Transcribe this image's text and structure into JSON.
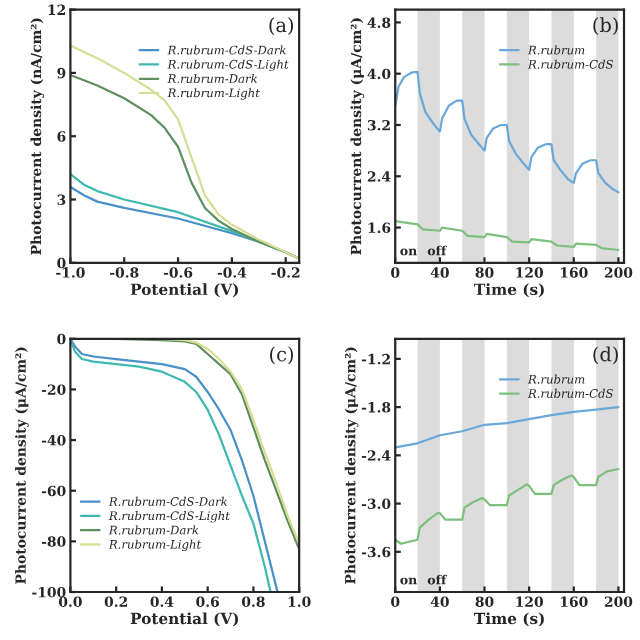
{
  "chart_data": [
    {
      "type": "line",
      "xlabel": "Potential (V)",
      "ylabel": "Photocurrent density (nA/cm²)",
      "xlim": [
        -1.0,
        -0.15
      ],
      "ylim": [
        0,
        12
      ],
      "xticks": [
        {
          "value": -1,
          "label": "-1.0"
        },
        -0.8,
        -0.6,
        -0.4,
        -0.2
      ],
      "yticks": [
        0,
        3,
        6,
        9,
        12
      ],
      "legend": "top right",
      "annotations": [
        "(a)"
      ],
      "series": [
        {
          "name": "R.rubrum-CdS-Dark",
          "color": "#4a90c8",
          "x": [
            -1.0,
            -0.95,
            -0.9,
            -0.8,
            -0.6,
            -0.4,
            -0.3,
            -0.2,
            -0.15
          ],
          "values": [
            3.6,
            3.2,
            2.9,
            2.6,
            2.1,
            1.4,
            1.0,
            0.5,
            0.2
          ]
        },
        {
          "name": "R.rubrum-CdS-Light",
          "color": "#3fb8b0",
          "x": [
            -1.0,
            -0.95,
            -0.9,
            -0.8,
            -0.6,
            -0.4,
            -0.3,
            -0.2,
            -0.15
          ],
          "values": [
            4.2,
            3.7,
            3.4,
            3.0,
            2.4,
            1.5,
            1.0,
            0.5,
            0.2
          ]
        },
        {
          "name": "R.rubrum-Dark",
          "color": "#5e8f5e",
          "x": [
            -1.0,
            -0.9,
            -0.8,
            -0.7,
            -0.65,
            -0.6,
            -0.55,
            -0.5,
            -0.45,
            -0.4,
            -0.3,
            -0.2,
            -0.15
          ],
          "values": [
            8.9,
            8.4,
            7.8,
            7.0,
            6.4,
            5.5,
            3.8,
            2.6,
            2.0,
            1.6,
            1.0,
            0.5,
            0.2
          ]
        },
        {
          "name": "R.rubrum-Light",
          "color": "#d4de94",
          "x": [
            -1.0,
            -0.9,
            -0.8,
            -0.7,
            -0.65,
            -0.6,
            -0.55,
            -0.5,
            -0.45,
            -0.4,
            -0.3,
            -0.2,
            -0.15
          ],
          "values": [
            10.3,
            9.7,
            9.0,
            8.2,
            7.7,
            6.8,
            5.0,
            3.2,
            2.3,
            1.8,
            1.1,
            0.5,
            0.2
          ]
        }
      ]
    },
    {
      "type": "line",
      "xlabel": "Time (s)",
      "ylabel": "Photocurrent density (μA/cm²)",
      "xlim": [
        0,
        205
      ],
      "ylim": [
        1.05,
        5.0
      ],
      "xticks": [
        0,
        40,
        80,
        120,
        160,
        200
      ],
      "yticks": [
        1.6,
        2.4,
        3.2,
        {
          "value": 4,
          "label": "4.0"
        },
        4.8
      ],
      "legend": "top right",
      "annotations": [
        "(b)",
        "on",
        "off"
      ],
      "bands": [
        {
          "axis": "x",
          "from": 20,
          "to": 40,
          "color": "#dcdcdc"
        },
        {
          "axis": "x",
          "from": 60,
          "to": 80,
          "color": "#dcdcdc"
        },
        {
          "axis": "x",
          "from": 100,
          "to": 120,
          "color": "#dcdcdc"
        },
        {
          "axis": "x",
          "from": 140,
          "to": 160,
          "color": "#dcdcdc"
        },
        {
          "axis": "x",
          "from": 180,
          "to": 200,
          "color": "#dcdcdc"
        }
      ],
      "series": [
        {
          "name": "R.rubrum",
          "color": "#6aa8d8",
          "x": [
            0,
            3,
            8,
            15,
            20,
            22,
            27,
            35,
            40,
            42,
            48,
            55,
            60,
            62,
            68,
            75,
            80,
            82,
            88,
            95,
            100,
            102,
            108,
            115,
            120,
            122,
            128,
            135,
            140,
            142,
            148,
            155,
            160,
            162,
            168,
            175,
            180,
            182,
            188,
            195,
            200
          ],
          "values": [
            3.5,
            3.8,
            3.95,
            4.02,
            4.03,
            3.7,
            3.4,
            3.2,
            3.1,
            3.3,
            3.5,
            3.58,
            3.58,
            3.3,
            3.05,
            2.9,
            2.8,
            3.0,
            3.15,
            3.2,
            3.2,
            2.95,
            2.75,
            2.6,
            2.5,
            2.7,
            2.85,
            2.9,
            2.9,
            2.65,
            2.5,
            2.35,
            2.3,
            2.45,
            2.6,
            2.65,
            2.65,
            2.45,
            2.3,
            2.2,
            2.15
          ]
        },
        {
          "name": "R.rubrum-CdS",
          "color": "#7cc07c",
          "x": [
            0,
            20,
            25,
            40,
            42,
            60,
            65,
            80,
            82,
            100,
            105,
            120,
            122,
            140,
            145,
            160,
            162,
            180,
            185,
            200
          ],
          "values": [
            1.7,
            1.65,
            1.57,
            1.55,
            1.6,
            1.55,
            1.47,
            1.45,
            1.5,
            1.45,
            1.38,
            1.37,
            1.42,
            1.38,
            1.32,
            1.3,
            1.35,
            1.33,
            1.28,
            1.25
          ]
        }
      ]
    },
    {
      "type": "line",
      "xlabel": "Potential (V)",
      "ylabel": "Photocurrent density (μA/cm²)",
      "xlim": [
        0.0,
        1.0
      ],
      "ylim": [
        -100,
        0
      ],
      "xticks": [
        {
          "value": 0,
          "label": "0.0"
        },
        0.2,
        0.4,
        0.6,
        0.8,
        {
          "value": 1,
          "label": "1.0"
        }
      ],
      "yticks": [
        0,
        -20,
        -40,
        -60,
        -80,
        -100
      ],
      "legend": "bottom left",
      "annotations": [
        "(c)"
      ],
      "series": [
        {
          "name": "R.rubrum-CdS-Dark",
          "color": "#4a90c8",
          "x": [
            0,
            0.02,
            0.05,
            0.1,
            0.2,
            0.3,
            0.4,
            0.5,
            0.55,
            0.6,
            0.65,
            0.7,
            0.75,
            0.8,
            0.85,
            0.9,
            0.905
          ],
          "values": [
            0,
            -3,
            -6,
            -7,
            -8,
            -9,
            -10,
            -12,
            -15,
            -21,
            -28,
            -36,
            -48,
            -62,
            -80,
            -98,
            -100
          ]
        },
        {
          "name": "R.rubrum-CdS-Light",
          "color": "#3fb8b0",
          "x": [
            0,
            0.02,
            0.05,
            0.1,
            0.2,
            0.3,
            0.4,
            0.5,
            0.55,
            0.6,
            0.65,
            0.7,
            0.75,
            0.8,
            0.85,
            0.875
          ],
          "values": [
            0,
            -5,
            -8,
            -9,
            -10,
            -11,
            -13,
            -17,
            -21,
            -28,
            -38,
            -50,
            -62,
            -73,
            -90,
            -100
          ]
        },
        {
          "name": "R.rubrum-Dark",
          "color": "#5e8f5e",
          "x": [
            0,
            0.2,
            0.4,
            0.5,
            0.55,
            0.6,
            0.65,
            0.7,
            0.75,
            0.8,
            0.85,
            0.9,
            0.95,
            1.0
          ],
          "values": [
            0,
            0,
            -0.5,
            -1,
            -2,
            -6,
            -10,
            -14,
            -22,
            -35,
            -48,
            -60,
            -72,
            -83
          ]
        },
        {
          "name": "R.rubrum-Light",
          "color": "#d4de94",
          "x": [
            0,
            0.2,
            0.4,
            0.5,
            0.55,
            0.6,
            0.65,
            0.7,
            0.75,
            0.8,
            0.85,
            0.9,
            0.95,
            1.0
          ],
          "values": [
            0,
            0,
            0,
            -0.5,
            -1.5,
            -4,
            -8,
            -13,
            -20,
            -32,
            -45,
            -57,
            -70,
            -81
          ]
        }
      ]
    },
    {
      "type": "line",
      "xlabel": "Time (s)",
      "ylabel": "Photocurrent density (μA/cm²)",
      "xlim": [
        0,
        205
      ],
      "ylim": [
        -4.1,
        -0.95
      ],
      "xticks": [
        0,
        40,
        80,
        120,
        160,
        200
      ],
      "yticks": [
        -1.2,
        -1.8,
        -2.4,
        {
          "value": -3,
          "label": "-3.0"
        },
        -3.6
      ],
      "legend": "top right",
      "annotations": [
        "(d)",
        "on",
        "off"
      ],
      "bands": [
        {
          "axis": "x",
          "from": 20,
          "to": 40,
          "color": "#dcdcdc"
        },
        {
          "axis": "x",
          "from": 60,
          "to": 80,
          "color": "#dcdcdc"
        },
        {
          "axis": "x",
          "from": 100,
          "to": 120,
          "color": "#dcdcdc"
        },
        {
          "axis": "x",
          "from": 140,
          "to": 160,
          "color": "#dcdcdc"
        },
        {
          "axis": "x",
          "from": 180,
          "to": 200,
          "color": "#dcdcdc"
        }
      ],
      "series": [
        {
          "name": "R.rubrum",
          "color": "#6aa8d8",
          "x": [
            0,
            20,
            40,
            60,
            80,
            100,
            120,
            140,
            160,
            180,
            200
          ],
          "values": [
            -2.3,
            -2.25,
            -2.15,
            -2.1,
            -2.02,
            -2.0,
            -1.95,
            -1.9,
            -1.86,
            -1.83,
            -1.8
          ]
        },
        {
          "name": "R.rubrum-CdS",
          "color": "#7cc07c",
          "x": [
            0,
            5,
            20,
            22,
            30,
            38,
            40,
            45,
            60,
            62,
            70,
            78,
            80,
            85,
            100,
            102,
            110,
            118,
            120,
            125,
            140,
            142,
            150,
            158,
            160,
            165,
            180,
            182,
            190,
            200
          ],
          "values": [
            -3.45,
            -3.5,
            -3.45,
            -3.3,
            -3.2,
            -3.12,
            -3.12,
            -3.2,
            -3.2,
            -3.05,
            -2.98,
            -2.93,
            -2.95,
            -3.02,
            -3.02,
            -2.9,
            -2.83,
            -2.76,
            -2.78,
            -2.88,
            -2.88,
            -2.77,
            -2.7,
            -2.65,
            -2.67,
            -2.77,
            -2.77,
            -2.67,
            -2.6,
            -2.57
          ]
        }
      ]
    }
  ]
}
